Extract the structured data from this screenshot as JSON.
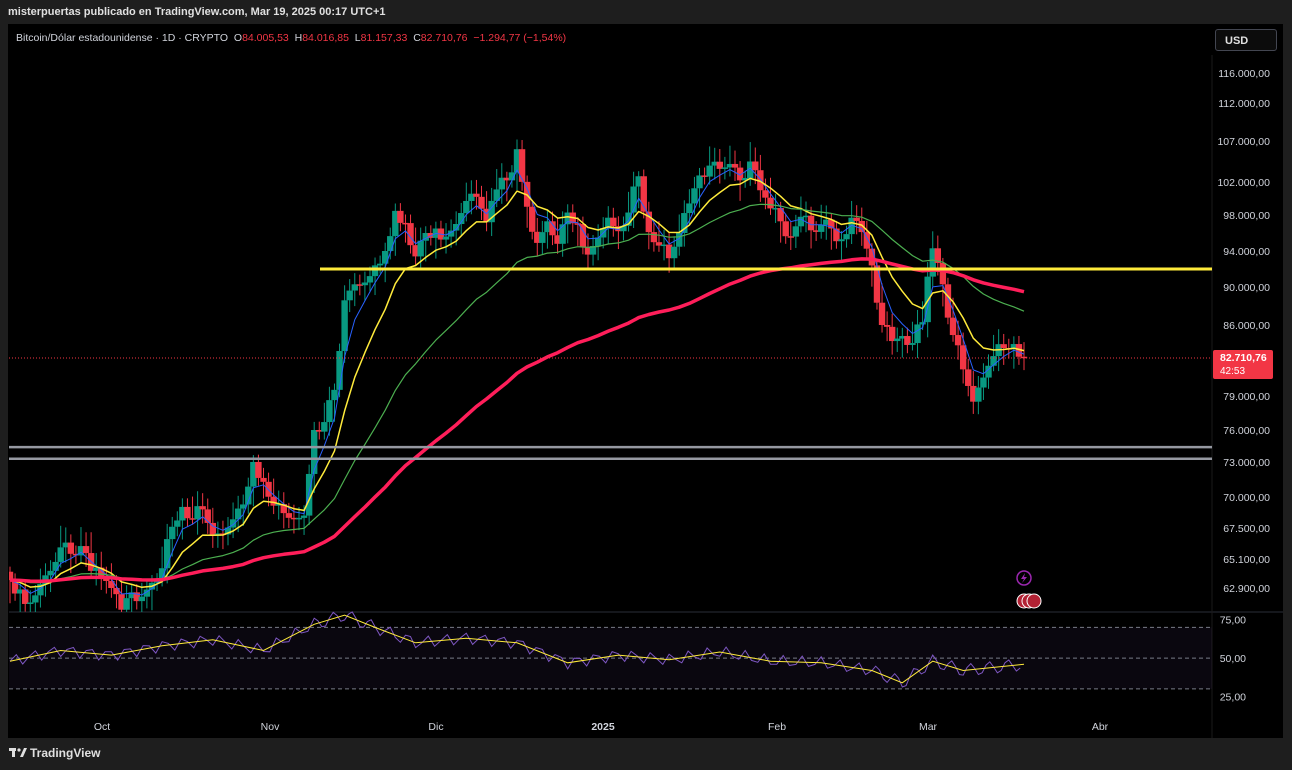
{
  "header": {
    "published": "misterpuertas publicado en TradingView.com, Mar 19, 2025 00:17 UTC+1"
  },
  "legend": {
    "symbol": "Bitcoin/Dólar estadounidense · 1D · CRYPTO",
    "o_label": "O",
    "o": "84.005,53",
    "h_label": "H",
    "h": "84.016,85",
    "l_label": "L",
    "l": "81.157,33",
    "c_label": "C",
    "c": "82.710,76",
    "change": "−1.294,77 (−1,54%)"
  },
  "currency_button": "USD",
  "price_tag": {
    "price": "82.710,76",
    "countdown": "42:53"
  },
  "brand": "TradingView",
  "colors": {
    "up": "#089981",
    "down": "#f23645",
    "ema_fast": "#2962ff",
    "ema_mid": "#ffeb3b",
    "ema_slow": "#4caf50",
    "ema_long": "#ff1e5a",
    "support": "#ffeb3b",
    "zone": "#9598a1",
    "rsi": "#7e57c2",
    "rsi_ma": "#ffeb3b"
  },
  "chart_data": [
    {
      "type": "candlestick",
      "symbol": "Bitcoin/Dólar estadounidense",
      "interval": "1D",
      "x_ticks": [
        "Oct",
        "Nov",
        "Dic",
        "2025",
        "Feb",
        "Mar",
        "Abr"
      ],
      "y_ticks": [
        "116.000,00",
        "112.000,00",
        "107.000,00",
        "102.000,00",
        "98.000,00",
        "94.000,00",
        "90.000,00",
        "86.000,00",
        "79.000,00",
        "76.000,00",
        "73.000,00",
        "70.000,00",
        "67.500,00",
        "65.100,00",
        "62.900,00"
      ],
      "y_tick_values": [
        116000,
        112000,
        107000,
        102000,
        98000,
        94000,
        90000,
        86000,
        79000,
        76000,
        73000,
        70000,
        67500,
        65100,
        62900
      ],
      "scale": "log",
      "last_price": 82710.76,
      "horizontal_lines": [
        {
          "name": "support",
          "value": 92000
        },
        {
          "name": "zone-top",
          "value": 74400
        },
        {
          "name": "zone-bottom",
          "value": 73300
        }
      ],
      "closes": [
        [
          0,
          63500
        ],
        [
          2,
          62800
        ],
        [
          4,
          61900
        ],
        [
          6,
          63200
        ],
        [
          8,
          64200
        ],
        [
          10,
          66000
        ],
        [
          12,
          65500
        ],
        [
          14,
          66100
        ],
        [
          16,
          64200
        ],
        [
          18,
          63600
        ],
        [
          20,
          62900
        ],
        [
          22,
          61400
        ],
        [
          24,
          62600
        ],
        [
          26,
          62300
        ],
        [
          28,
          63300
        ],
        [
          30,
          64400
        ],
        [
          32,
          67600
        ],
        [
          34,
          69200
        ],
        [
          36,
          68200
        ],
        [
          38,
          69000
        ],
        [
          40,
          66900
        ],
        [
          42,
          67000
        ],
        [
          44,
          68200
        ],
        [
          46,
          69400
        ],
        [
          48,
          73000
        ],
        [
          50,
          71300
        ],
        [
          52,
          69300
        ],
        [
          54,
          68700
        ],
        [
          56,
          68200
        ],
        [
          58,
          68500
        ],
        [
          60,
          76000
        ],
        [
          62,
          76700
        ],
        [
          64,
          79600
        ],
        [
          66,
          88600
        ],
        [
          68,
          90300
        ],
        [
          70,
          90500
        ],
        [
          72,
          92400
        ],
        [
          74,
          94000
        ],
        [
          76,
          98500
        ],
        [
          78,
          97100
        ],
        [
          80,
          93400
        ],
        [
          82,
          96000
        ],
        [
          84,
          96500
        ],
        [
          86,
          95600
        ],
        [
          88,
          97000
        ],
        [
          90,
          99700
        ],
        [
          92,
          100200
        ],
        [
          94,
          97200
        ],
        [
          96,
          101100
        ],
        [
          98,
          102200
        ],
        [
          100,
          106000
        ],
        [
          102,
          99000
        ],
        [
          104,
          94900
        ],
        [
          106,
          97300
        ],
        [
          108,
          94800
        ],
        [
          110,
          98300
        ],
        [
          112,
          97000
        ],
        [
          114,
          93600
        ],
        [
          116,
          95500
        ],
        [
          118,
          97700
        ],
        [
          120,
          96200
        ],
        [
          122,
          98300
        ],
        [
          124,
          102700
        ],
        [
          126,
          96100
        ],
        [
          128,
          94600
        ],
        [
          130,
          93200
        ],
        [
          132,
          96000
        ],
        [
          134,
          99400
        ],
        [
          136,
          102800
        ],
        [
          138,
          104000
        ],
        [
          140,
          103600
        ],
        [
          142,
          104200
        ],
        [
          144,
          102200
        ],
        [
          146,
          104500
        ],
        [
          148,
          101000
        ],
        [
          150,
          98800
        ],
        [
          152,
          97300
        ],
        [
          154,
          95600
        ],
        [
          156,
          97800
        ],
        [
          158,
          96300
        ],
        [
          160,
          96900
        ],
        [
          162,
          96500
        ],
        [
          164,
          95300
        ],
        [
          166,
          97700
        ],
        [
          168,
          96100
        ],
        [
          170,
          92400
        ],
        [
          172,
          86000
        ],
        [
          174,
          84400
        ],
        [
          176,
          84900
        ],
        [
          178,
          84200
        ],
        [
          180,
          86300
        ],
        [
          182,
          94300
        ],
        [
          184,
          90300
        ],
        [
          186,
          85000
        ],
        [
          188,
          81600
        ],
        [
          190,
          78500
        ],
        [
          192,
          80800
        ],
        [
          194,
          82900
        ],
        [
          196,
          83700
        ],
        [
          198,
          84100
        ],
        [
          200,
          82710
        ]
      ],
      "rsi": {
        "name": "RSI",
        "upper": 70,
        "middle": 50,
        "lower": 30,
        "y_ticks": [
          "75,00",
          "50,00",
          "25,00"
        ],
        "points": [
          [
            0,
            48
          ],
          [
            10,
            55
          ],
          [
            20,
            52
          ],
          [
            30,
            58
          ],
          [
            40,
            62
          ],
          [
            50,
            55
          ],
          [
            60,
            72
          ],
          [
            66,
            78
          ],
          [
            72,
            70
          ],
          [
            80,
            60
          ],
          [
            90,
            63
          ],
          [
            100,
            60
          ],
          [
            110,
            47
          ],
          [
            120,
            52
          ],
          [
            130,
            49
          ],
          [
            140,
            54
          ],
          [
            150,
            48
          ],
          [
            160,
            47
          ],
          [
            170,
            42
          ],
          [
            176,
            34
          ],
          [
            182,
            48
          ],
          [
            188,
            42
          ],
          [
            194,
            44
          ],
          [
            200,
            46
          ]
        ]
      }
    }
  ]
}
